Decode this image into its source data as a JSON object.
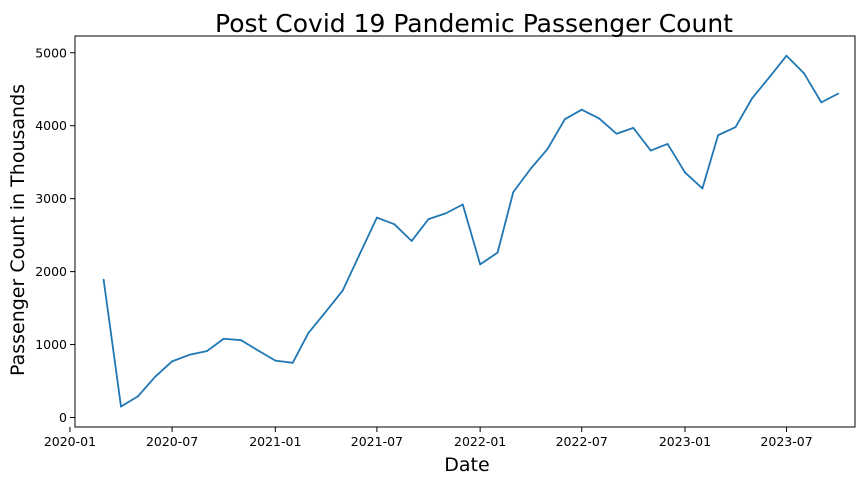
{
  "chart_data": {
    "type": "line",
    "title": "Post Covid 19 Pandemic Passenger Count",
    "xlabel": "Date",
    "ylabel": "Passenger Count in Thousands",
    "x_ticks": [
      "2020-01",
      "2020-07",
      "2021-01",
      "2021-07",
      "2022-01",
      "2022-07",
      "2023-01",
      "2023-07"
    ],
    "y_ticks": [
      0,
      1000,
      2000,
      3000,
      4000,
      5000
    ],
    "xlim": [
      "2020-01-10",
      "2023-10-31"
    ],
    "ylim": [
      -130,
      5230
    ],
    "grid": false,
    "line_color": "#1f77b4",
    "x": [
      "2020-03-01",
      "2020-04-01",
      "2020-05-01",
      "2020-06-01",
      "2020-07-01",
      "2020-08-01",
      "2020-09-01",
      "2020-10-01",
      "2020-11-01",
      "2020-12-01",
      "2021-01-01",
      "2021-02-01",
      "2021-03-01",
      "2021-04-01",
      "2021-05-01",
      "2021-06-01",
      "2021-07-01",
      "2021-08-01",
      "2021-09-01",
      "2021-10-01",
      "2021-11-01",
      "2021-12-01",
      "2022-01-01",
      "2022-02-01",
      "2022-03-01",
      "2022-04-01",
      "2022-05-01",
      "2022-06-01",
      "2022-07-01",
      "2022-08-01",
      "2022-09-01",
      "2022-10-01",
      "2022-11-01",
      "2022-12-01",
      "2023-01-01",
      "2023-02-01",
      "2023-03-01",
      "2023-04-01",
      "2023-05-01",
      "2023-06-01",
      "2023-07-01",
      "2023-08-01",
      "2023-09-01",
      "2023-10-01"
    ],
    "values": [
      1890,
      150,
      290,
      560,
      770,
      860,
      910,
      1080,
      1060,
      920,
      780,
      750,
      1160,
      1450,
      1740,
      2250,
      2740,
      2650,
      2420,
      2720,
      2800,
      2920,
      2100,
      2260,
      3090,
      3410,
      3680,
      4090,
      4220,
      4100,
      3890,
      3970,
      3660,
      3750,
      3360,
      3140,
      3870,
      3980,
      4380,
      4670,
      4960,
      4720,
      4320,
      4440
    ]
  }
}
